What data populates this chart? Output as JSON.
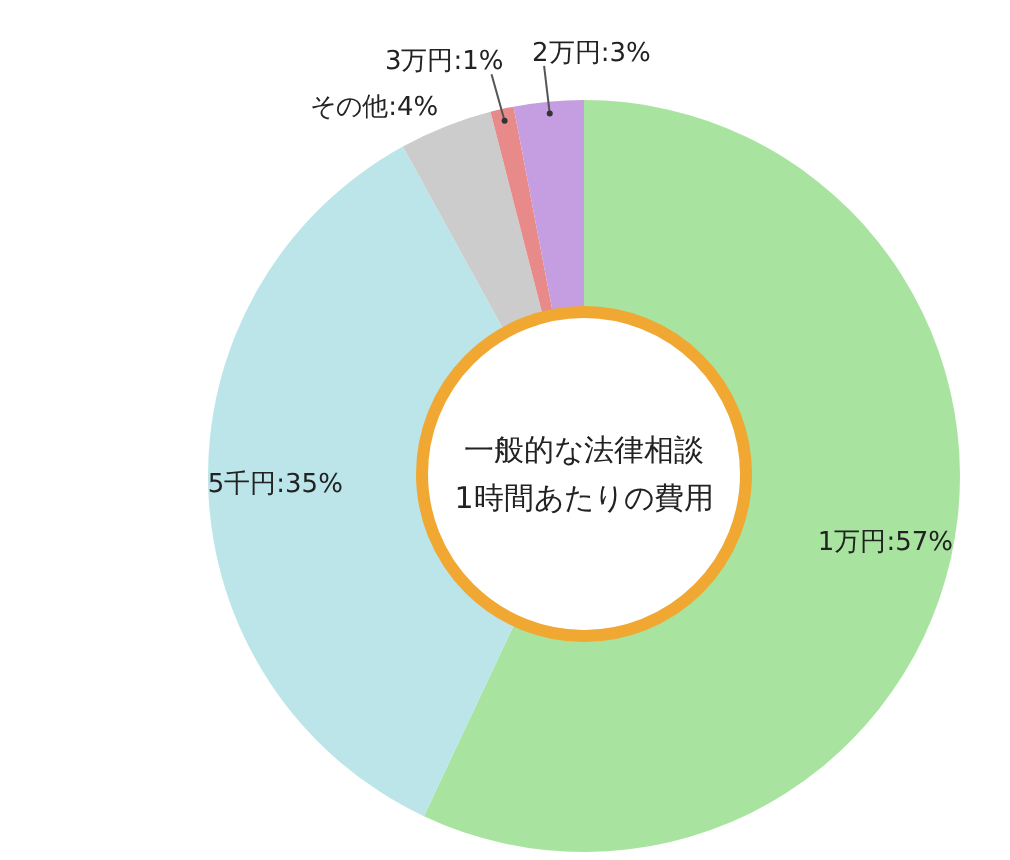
{
  "chart_data": {
    "type": "donut",
    "title": "一般的な法律相談\n1時間あたりの費用",
    "categories": [
      "1万円",
      "5千円",
      "その他",
      "3万円",
      "2万円"
    ],
    "values": [
      57,
      35,
      4,
      1,
      3
    ],
    "value_labels": [
      "57%",
      "35%",
      "4%",
      "1%",
      "3%"
    ],
    "colors": [
      "#a8e4a0",
      "#bce5ea",
      "#cccccc",
      "#e88a8a",
      "#c49ee0"
    ],
    "legend": false
  }
}
